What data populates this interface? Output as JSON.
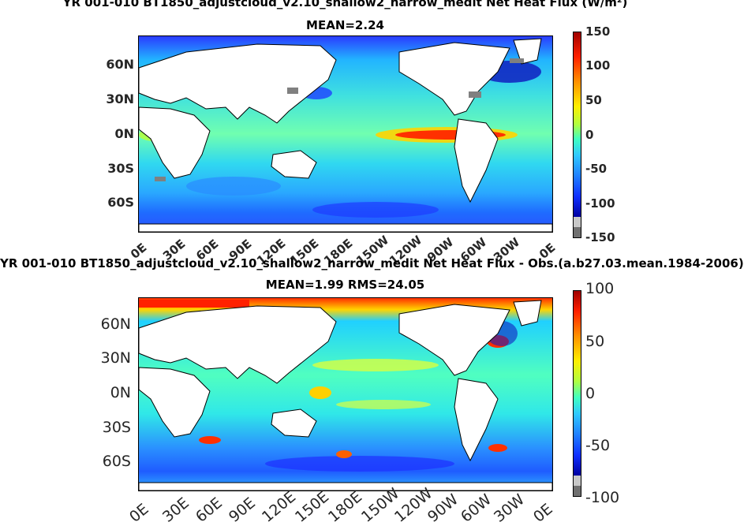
{
  "panel1": {
    "title": "YR 001-010 BT1850_adjustcloud_v2.10_shallow2_narrow_medit  Net Heat Flux (W/m²)",
    "subtitle": "MEAN=2.24",
    "lat_labels": [
      "60N",
      "30N",
      "0N",
      "30S",
      "60S"
    ],
    "lon_labels": [
      "0E",
      "30E",
      "60E",
      "90E",
      "120E",
      "150E",
      "180E",
      "150W",
      "120W",
      "90W",
      "60W",
      "30W",
      "0E"
    ],
    "colorbar_ticks": [
      "150",
      "100",
      "50",
      "0",
      "-50",
      "-100",
      "-150"
    ],
    "colorbar_range": [
      -150,
      150
    ]
  },
  "panel2": {
    "title": "YR 001-010 BT1850_adjustcloud_v2.10_shallow2_narrow_medit Net Heat Flux - Obs.(a.b27.03.mean.1984-2006)",
    "subtitle": "MEAN=1.99 RMS=24.05",
    "lat_labels": [
      "60N",
      "30N",
      "0N",
      "30S",
      "60S"
    ],
    "lon_labels": [
      "0E",
      "30E",
      "60E",
      "90E",
      "120E",
      "150E",
      "180E",
      "150W",
      "120W",
      "90W",
      "60W",
      "30W",
      "0E"
    ],
    "colorbar_ticks": [
      "100",
      "50",
      "0",
      "-50",
      "-100"
    ],
    "colorbar_range": [
      -100,
      100
    ]
  },
  "colors": {
    "land": "#ffffff",
    "missing": "#808080",
    "ocean_base": "#33ccff"
  }
}
